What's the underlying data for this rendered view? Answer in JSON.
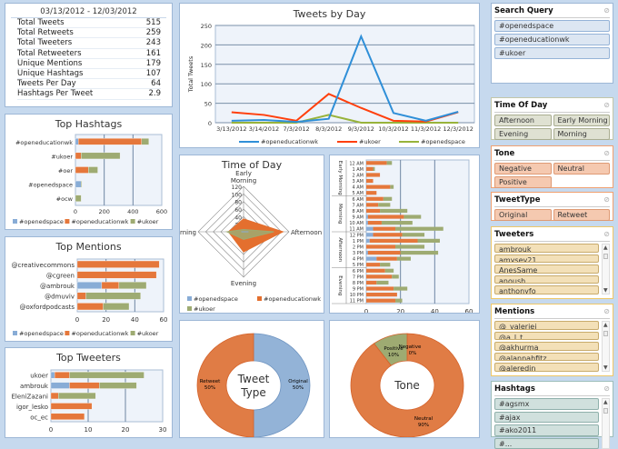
{
  "stats": {
    "date_range": "03/13/2012 - 12/03/2012",
    "rows": [
      {
        "label": "Total Tweets",
        "value": "515"
      },
      {
        "label": "Total Retweets",
        "value": "259"
      },
      {
        "label": "Total Tweeters",
        "value": "243"
      },
      {
        "label": "Total Retweeters",
        "value": "161"
      },
      {
        "label": "Unique Mentions",
        "value": "179"
      },
      {
        "label": "Unique Hashtags",
        "value": "107"
      },
      {
        "label": "Tweets Per Day",
        "value": "64"
      },
      {
        "label": "Hashtags Per Tweet",
        "value": "2.9"
      }
    ]
  },
  "colors": {
    "openedspace": "#88acd6",
    "openeducationwk": "#e5773b",
    "ukoer": "#9eab72",
    "line_openeducationwk": "#2f8fd8",
    "line_ukoer": "#ff3f0c",
    "line_openedspace": "#98b33a"
  },
  "chart_data": [
    {
      "id": "top-hashtags",
      "type": "bar",
      "orientation": "horizontal",
      "stacked": true,
      "title": "Top Hashtags",
      "categories": [
        "#openeducationwk",
        "#ukoer",
        "#oer",
        "#openedspace",
        "#ocw"
      ],
      "series": [
        {
          "name": "#openedspace",
          "values": [
            20,
            0,
            0,
            40,
            0
          ]
        },
        {
          "name": "#openeducationwk",
          "values": [
            440,
            40,
            90,
            0,
            0
          ]
        },
        {
          "name": "#ukoer",
          "values": [
            50,
            270,
            65,
            5,
            40
          ]
        }
      ],
      "xlim": [
        0,
        600
      ],
      "ticks": [
        0,
        200,
        400,
        600
      ],
      "legend": "bottom",
      "grid": true
    },
    {
      "id": "top-mentions",
      "type": "bar",
      "orientation": "horizontal",
      "stacked": true,
      "title": "Top Mentions",
      "categories": [
        "@creativecommons",
        "@cgreen",
        "@ambrouk",
        "@dmuviv",
        "@oxfordpodcasts"
      ],
      "series": [
        {
          "name": "#openedspace",
          "values": [
            0,
            0,
            17,
            0,
            0
          ]
        },
        {
          "name": "#openeducationwk",
          "values": [
            57,
            55,
            12,
            6,
            18
          ]
        },
        {
          "name": "#ukoer",
          "values": [
            0,
            0,
            19,
            38,
            18
          ]
        }
      ],
      "xlim": [
        0,
        60
      ],
      "ticks": [
        0,
        20,
        40,
        60
      ],
      "legend": "bottom",
      "grid": true
    },
    {
      "id": "top-tweeters",
      "type": "bar",
      "orientation": "horizontal",
      "stacked": true,
      "title": "Top Tweeters",
      "categories": [
        "ukoer",
        "ambrouk",
        "EleniZazani",
        "igor_lesko",
        "oc_ec"
      ],
      "series": [
        {
          "name": "#openedspace",
          "values": [
            1,
            5,
            0,
            0,
            0
          ]
        },
        {
          "name": "#openeducationwk",
          "values": [
            4,
            8,
            2,
            11,
            9
          ]
        },
        {
          "name": "#ukoer",
          "values": [
            20,
            10,
            10,
            0,
            0
          ]
        }
      ],
      "xlim": [
        0,
        30
      ],
      "ticks": [
        0,
        10,
        20,
        30
      ],
      "grid": true
    },
    {
      "id": "tweets-by-day",
      "type": "line",
      "title": "Tweets by Day",
      "ylabel": "Total Tweets",
      "x": [
        "3/13/2012",
        "3/14/2012",
        "7/3/2012",
        "8/3/2012",
        "9/3/2012",
        "10/3/2012",
        "11/3/2012",
        "12/3/2012"
      ],
      "series": [
        {
          "name": "#openeducationwk",
          "values": [
            5,
            7,
            2,
            10,
            222,
            25,
            5,
            28
          ]
        },
        {
          "name": "#ukoer",
          "values": [
            27,
            20,
            5,
            74,
            38,
            5,
            3,
            27
          ]
        },
        {
          "name": "#openedspace",
          "values": [
            0,
            0,
            0,
            20,
            0,
            0,
            0,
            0
          ]
        }
      ],
      "ylim": [
        0,
        250
      ],
      "ticks": [
        0,
        50,
        100,
        150,
        200,
        250
      ],
      "legend": "bottom",
      "grid": true
    },
    {
      "id": "time-of-day",
      "type": "radar",
      "title": "Time of Day",
      "axes": [
        "Early Morning",
        "Afternoon",
        "Evening",
        "Morning"
      ],
      "ticks": [
        0,
        20,
        40,
        60,
        80,
        100,
        120
      ],
      "series": [
        {
          "name": "#openedspace",
          "values": [
            0,
            13,
            0,
            6
          ]
        },
        {
          "name": "#openeducationwk",
          "values": [
            34,
            104,
            53,
            40
          ]
        },
        {
          "name": "#ukoer",
          "values": [
            6,
            80,
            20,
            44
          ]
        }
      ],
      "legend": "bottom"
    },
    {
      "id": "tweets-by-hour",
      "type": "bar",
      "orientation": "horizontal",
      "stacked": true,
      "groups": [
        {
          "label": "Early Morning",
          "size": 6
        },
        {
          "label": "Morning",
          "size": 6
        },
        {
          "label": "Afternoon",
          "size": 6
        },
        {
          "label": "Evening",
          "size": 6
        }
      ],
      "categories": [
        "12 AM",
        "1 AM",
        "2 AM",
        "3 AM",
        "4 AM",
        "5 AM",
        "6 AM",
        "7 AM",
        "8 AM",
        "9 AM",
        "10 AM",
        "11 AM",
        "12 PM",
        "1 PM",
        "2 PM",
        "3 PM",
        "4 PM",
        "5 PM",
        "6 PM",
        "7 PM",
        "8 PM",
        "9 PM",
        "10 PM",
        "11 PM"
      ],
      "series": [
        {
          "name": "#openedspace",
          "values": [
            0,
            0,
            0,
            0,
            0,
            0,
            0,
            0,
            0,
            1,
            1,
            4,
            4,
            2,
            0,
            1,
            6,
            0,
            0,
            0,
            0,
            0,
            0,
            0
          ]
        },
        {
          "name": "#openeducationwk",
          "values": [
            12,
            4,
            8,
            4,
            14,
            6,
            10,
            7,
            8,
            21,
            8,
            13,
            17,
            28,
            17,
            19,
            12,
            8,
            11,
            15,
            6,
            16,
            18,
            17
          ]
        },
        {
          "name": "#ukoer",
          "values": [
            3,
            1,
            0,
            0,
            2,
            0,
            5,
            7,
            16,
            10,
            18,
            28,
            13,
            13,
            17,
            22,
            8,
            6,
            5,
            4,
            7,
            8,
            0,
            4
          ]
        }
      ],
      "xlim": [
        0,
        60
      ],
      "ticks": [
        0,
        20,
        40,
        60
      ],
      "grid": true
    },
    {
      "id": "tweet-type",
      "type": "pie",
      "donut": true,
      "center_label": "Tweet Type",
      "slices": [
        {
          "label": "Original",
          "value": 50,
          "pct": "50%",
          "color": "#93b3d7"
        },
        {
          "label": "Retweet",
          "value": 50,
          "pct": "50%",
          "color": "#e07c45"
        }
      ]
    },
    {
      "id": "tone",
      "type": "pie",
      "donut": true,
      "center_label": "Tone",
      "slices": [
        {
          "label": "Negative",
          "value": 0,
          "pct": "0%",
          "color": "#9eab72"
        },
        {
          "label": "Neutral",
          "value": 90,
          "pct": "90%",
          "color": "#e07c45"
        },
        {
          "label": "Positive",
          "value": 10,
          "pct": "10%",
          "color": "#9eab72"
        }
      ]
    }
  ],
  "slicers": {
    "search_query": {
      "title": "Search Query",
      "items": [
        "#openedspace",
        "#openeducationwk",
        "#ukoer"
      ]
    },
    "time_of_day": {
      "title": "Time Of Day",
      "items": [
        "Afternoon",
        "Early Morning",
        "Evening",
        "Morning"
      ]
    },
    "tone": {
      "title": "Tone",
      "items": [
        "Negative",
        "Neutral",
        "Positive"
      ]
    },
    "tweet_type": {
      "title": "TweetType",
      "items": [
        "Original",
        "Retweet"
      ]
    },
    "tweeters": {
      "title": "Tweeters",
      "items": [
        "ambrouk",
        "amysev21",
        "AnesSame",
        "anoush",
        "anthonyfo"
      ]
    },
    "mentions": {
      "title": "Mentions",
      "items": [
        "@_valeriei",
        "@a_l_t",
        "@akhurma",
        "@alannahfitz",
        "@aleredin"
      ]
    },
    "hashtags": {
      "title": "Hashtags",
      "items": [
        "#agsmx",
        "#ajax",
        "#ako2011",
        "#..."
      ]
    }
  }
}
